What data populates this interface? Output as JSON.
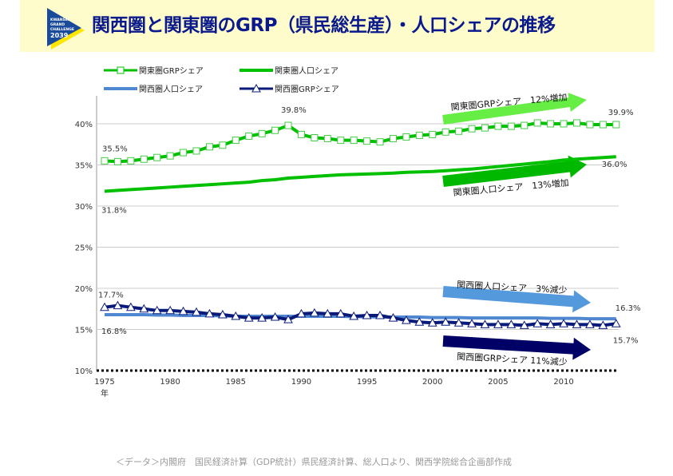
{
  "header": {
    "title": "関西圏と関東圏のGRP（県民総生産）・人口シェアの推移",
    "logo_text": [
      "KWANSEI",
      "GRAND",
      "CHALLENGE",
      "2039"
    ]
  },
  "footer": {
    "source": "＜データ＞内閣府　国民経済計算（GDP統計）県民経済計算、総人口より、関西学院総合企画部作成"
  },
  "chart_data": {
    "type": "line",
    "xlabel": "年",
    "ylabel": "",
    "xlim": [
      1975,
      2014
    ],
    "ylim": [
      10,
      40
    ],
    "y_ticks": [
      "10%",
      "15%",
      "20%",
      "25%",
      "30%",
      "35%",
      "40%"
    ],
    "x_ticks": [
      "1975",
      "1980",
      "1985",
      "1990",
      "1995",
      "2000",
      "2005",
      "2010"
    ],
    "grid": true,
    "legend_placement": "top",
    "x": [
      1975,
      1976,
      1977,
      1978,
      1979,
      1980,
      1981,
      1982,
      1983,
      1984,
      1985,
      1986,
      1987,
      1988,
      1989,
      1990,
      1991,
      1992,
      1993,
      1994,
      1995,
      1996,
      1997,
      1998,
      1999,
      2000,
      2001,
      2002,
      2003,
      2004,
      2005,
      2006,
      2007,
      2008,
      2009,
      2010,
      2011,
      2012,
      2013,
      2014
    ],
    "series": [
      {
        "name": "関東圏GRPシェア",
        "color": "#00c000",
        "marker": "square",
        "values": [
          35.5,
          35.4,
          35.5,
          35.7,
          35.9,
          36.1,
          36.5,
          36.7,
          37.2,
          37.4,
          38.0,
          38.5,
          38.8,
          39.2,
          39.8,
          38.7,
          38.3,
          38.2,
          38.0,
          38.0,
          37.9,
          37.8,
          38.2,
          38.4,
          38.6,
          38.7,
          39.0,
          39.1,
          39.4,
          39.5,
          39.7,
          39.7,
          39.8,
          40.1,
          40.0,
          40.0,
          40.1,
          39.9,
          39.9,
          39.9
        ]
      },
      {
        "name": "関東圏人口シェア",
        "color": "#00c000",
        "marker": "none",
        "values": [
          31.8,
          31.9,
          32.0,
          32.1,
          32.2,
          32.3,
          32.4,
          32.5,
          32.6,
          32.7,
          32.8,
          32.9,
          33.1,
          33.2,
          33.4,
          33.5,
          33.6,
          33.7,
          33.8,
          33.85,
          33.9,
          33.95,
          34.0,
          34.1,
          34.15,
          34.2,
          34.3,
          34.4,
          34.5,
          34.65,
          34.8,
          34.95,
          35.1,
          35.25,
          35.4,
          35.6,
          35.7,
          35.8,
          35.9,
          36.0
        ]
      },
      {
        "name": "関西圏人口シェア",
        "color": "#4f88d0",
        "marker": "none",
        "values": [
          16.8,
          16.8,
          16.8,
          16.8,
          16.75,
          16.75,
          16.7,
          16.7,
          16.7,
          16.65,
          16.6,
          16.6,
          16.6,
          16.6,
          16.6,
          16.6,
          16.6,
          16.6,
          16.6,
          16.55,
          16.55,
          16.5,
          16.5,
          16.5,
          16.5,
          16.45,
          16.45,
          16.45,
          16.4,
          16.4,
          16.4,
          16.4,
          16.4,
          16.4,
          16.35,
          16.35,
          16.35,
          16.3,
          16.3,
          16.3
        ]
      },
      {
        "name": "関西圏GRPシェア",
        "color": "#0a1a7a",
        "marker": "triangle",
        "values": [
          17.7,
          17.9,
          17.7,
          17.5,
          17.3,
          17.3,
          17.2,
          17.1,
          16.9,
          16.8,
          16.6,
          16.4,
          16.4,
          16.5,
          16.2,
          16.9,
          17.0,
          16.9,
          16.9,
          16.6,
          16.7,
          16.7,
          16.4,
          16.1,
          15.9,
          15.8,
          15.9,
          15.8,
          15.7,
          15.6,
          15.6,
          15.6,
          15.5,
          15.7,
          15.6,
          15.7,
          15.6,
          15.6,
          15.5,
          15.7
        ]
      }
    ],
    "data_labels": [
      {
        "series": 0,
        "x": 1975,
        "text": "35.5%"
      },
      {
        "series": 0,
        "x": 1989,
        "text": "39.8%"
      },
      {
        "series": 0,
        "x": 2014,
        "text": "39.9%"
      },
      {
        "series": 1,
        "x": 1975,
        "text": "31.8%"
      },
      {
        "series": 1,
        "x": 2014,
        "text": "36.0%"
      },
      {
        "series": 3,
        "x": 1975,
        "text": "17.7%"
      },
      {
        "series": 2,
        "x": 1975,
        "text": "16.8%"
      },
      {
        "series": 2,
        "x": 2014,
        "text": "16.3%"
      },
      {
        "series": 3,
        "x": 2014,
        "text": "15.7%"
      }
    ],
    "annotations": [
      {
        "text": "関東圏GRPシェア　12%増加",
        "color": "#66ee44"
      },
      {
        "text": "関東圏人口シェア　13%増加",
        "color": "#00b800"
      },
      {
        "text": "関西圏人口シェア　3%減少",
        "color": "#5599dd"
      },
      {
        "text": "関西圏GRPシェア 11%減少",
        "color": "#000066"
      }
    ]
  }
}
